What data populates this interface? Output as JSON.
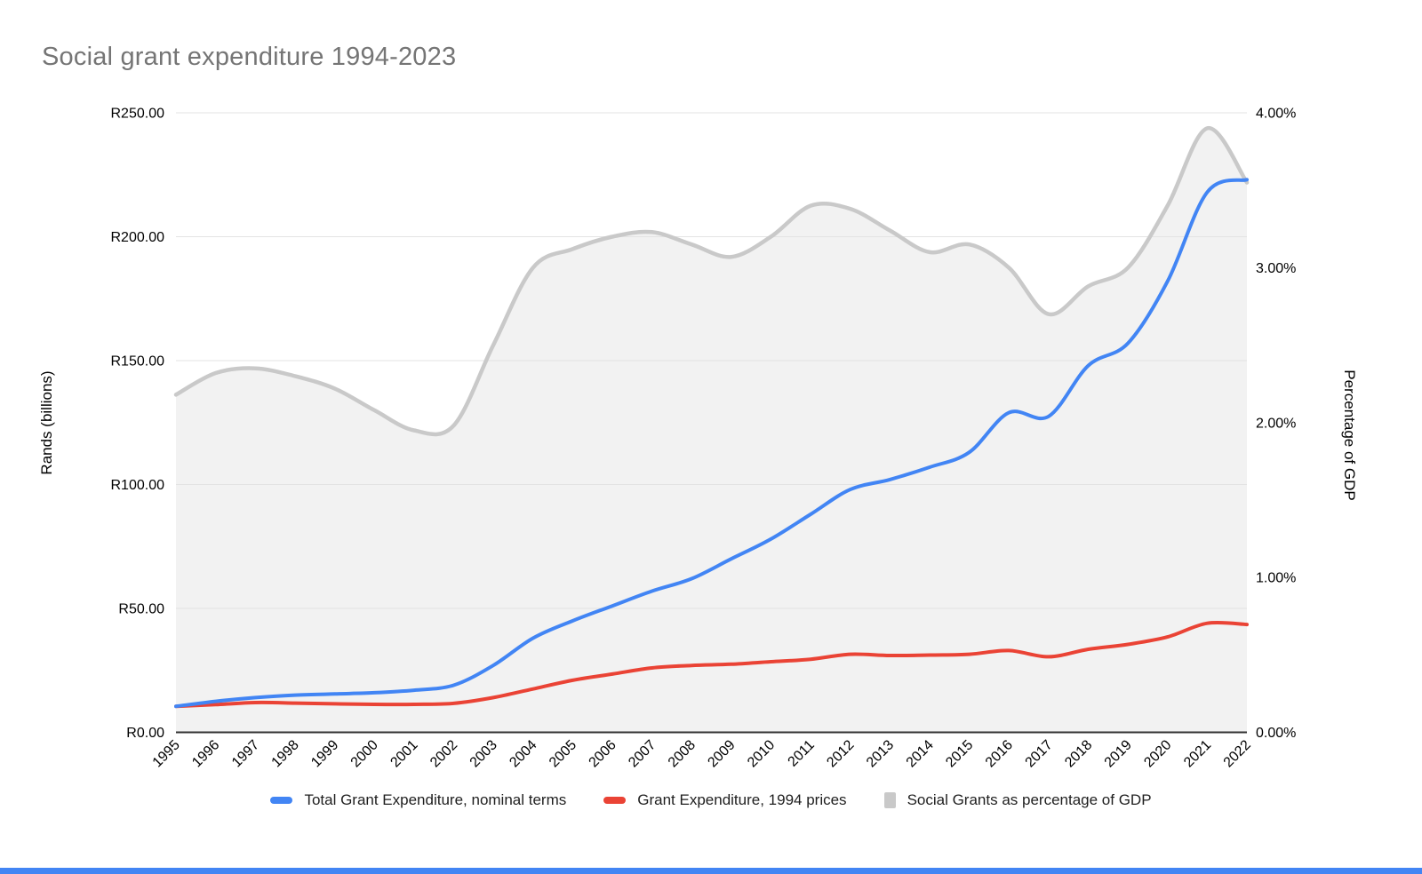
{
  "chart": {
    "title": "Social grant expenditure 1994-2023"
  },
  "colors": {
    "nominal_line": "#4285F4",
    "real_line": "#EA4335",
    "gdp_stroke": "#C9C9C9",
    "gdp_fill": "#F2F2F2",
    "gridline": "#E3E3E3",
    "axis_baseline": "#333333",
    "title_text": "#757575",
    "tick_text": "#000000",
    "bottom_bar": "#4285F4"
  },
  "chart_data": {
    "type": "line",
    "title": "Social grant expenditure 1994-2023",
    "grid": true,
    "legend_position": "bottom",
    "x": [
      1995,
      1996,
      1997,
      1998,
      1999,
      2000,
      2001,
      2002,
      2003,
      2004,
      2005,
      2006,
      2007,
      2008,
      2009,
      2010,
      2011,
      2012,
      2013,
      2014,
      2015,
      2016,
      2017,
      2018,
      2019,
      2020,
      2021,
      2022
    ],
    "left_axis": {
      "label": "Rands (billions)",
      "range": [
        0,
        250
      ],
      "tick_values": [
        0,
        50,
        100,
        150,
        200,
        250
      ],
      "tick_labels": [
        "R0.00",
        "R50.00",
        "R100.00",
        "R150.00",
        "R200.00",
        "R250.00"
      ]
    },
    "right_axis": {
      "label": "Percentage of GDP",
      "range": [
        0,
        4
      ],
      "tick_values": [
        0,
        1,
        2,
        3,
        4
      ],
      "tick_labels": [
        "0.00%",
        "1.00%",
        "2.00%",
        "3.00%",
        "4.00%"
      ]
    },
    "series": [
      {
        "name": "Total Grant Expenditure, nominal terms",
        "axis": "left",
        "style": "line",
        "color": "#4285F4",
        "values": [
          10.5,
          12.5,
          14,
          15,
          15.5,
          16,
          17,
          19,
          27,
          38,
          45,
          51,
          57,
          62,
          70,
          78,
          88,
          98,
          102,
          107,
          113,
          129,
          127.5,
          148,
          157,
          182,
          218,
          223
        ]
      },
      {
        "name": "Grant Expenditure, 1994 prices",
        "axis": "left",
        "style": "line",
        "color": "#EA4335",
        "values": [
          10.5,
          11.2,
          12,
          11.8,
          11.5,
          11.3,
          11.3,
          11.7,
          14,
          17.5,
          21,
          23.5,
          26,
          27,
          27.5,
          28.5,
          29.5,
          31.5,
          31,
          31.2,
          31.5,
          33,
          30.5,
          33.5,
          35.5,
          38.5,
          44,
          43.5
        ]
      },
      {
        "name": "Social Grants as percentage of GDP",
        "axis": "right",
        "style": "area",
        "color": "#C9C9C9",
        "fill": "#F2F2F2",
        "values": [
          2.18,
          2.32,
          2.35,
          2.3,
          2.22,
          2.08,
          1.95,
          1.98,
          2.5,
          3.0,
          3.12,
          3.2,
          3.23,
          3.15,
          3.07,
          3.2,
          3.4,
          3.38,
          3.24,
          3.1,
          3.15,
          3.0,
          2.7,
          2.88,
          3.0,
          3.4,
          3.9,
          3.55
        ]
      }
    ]
  }
}
